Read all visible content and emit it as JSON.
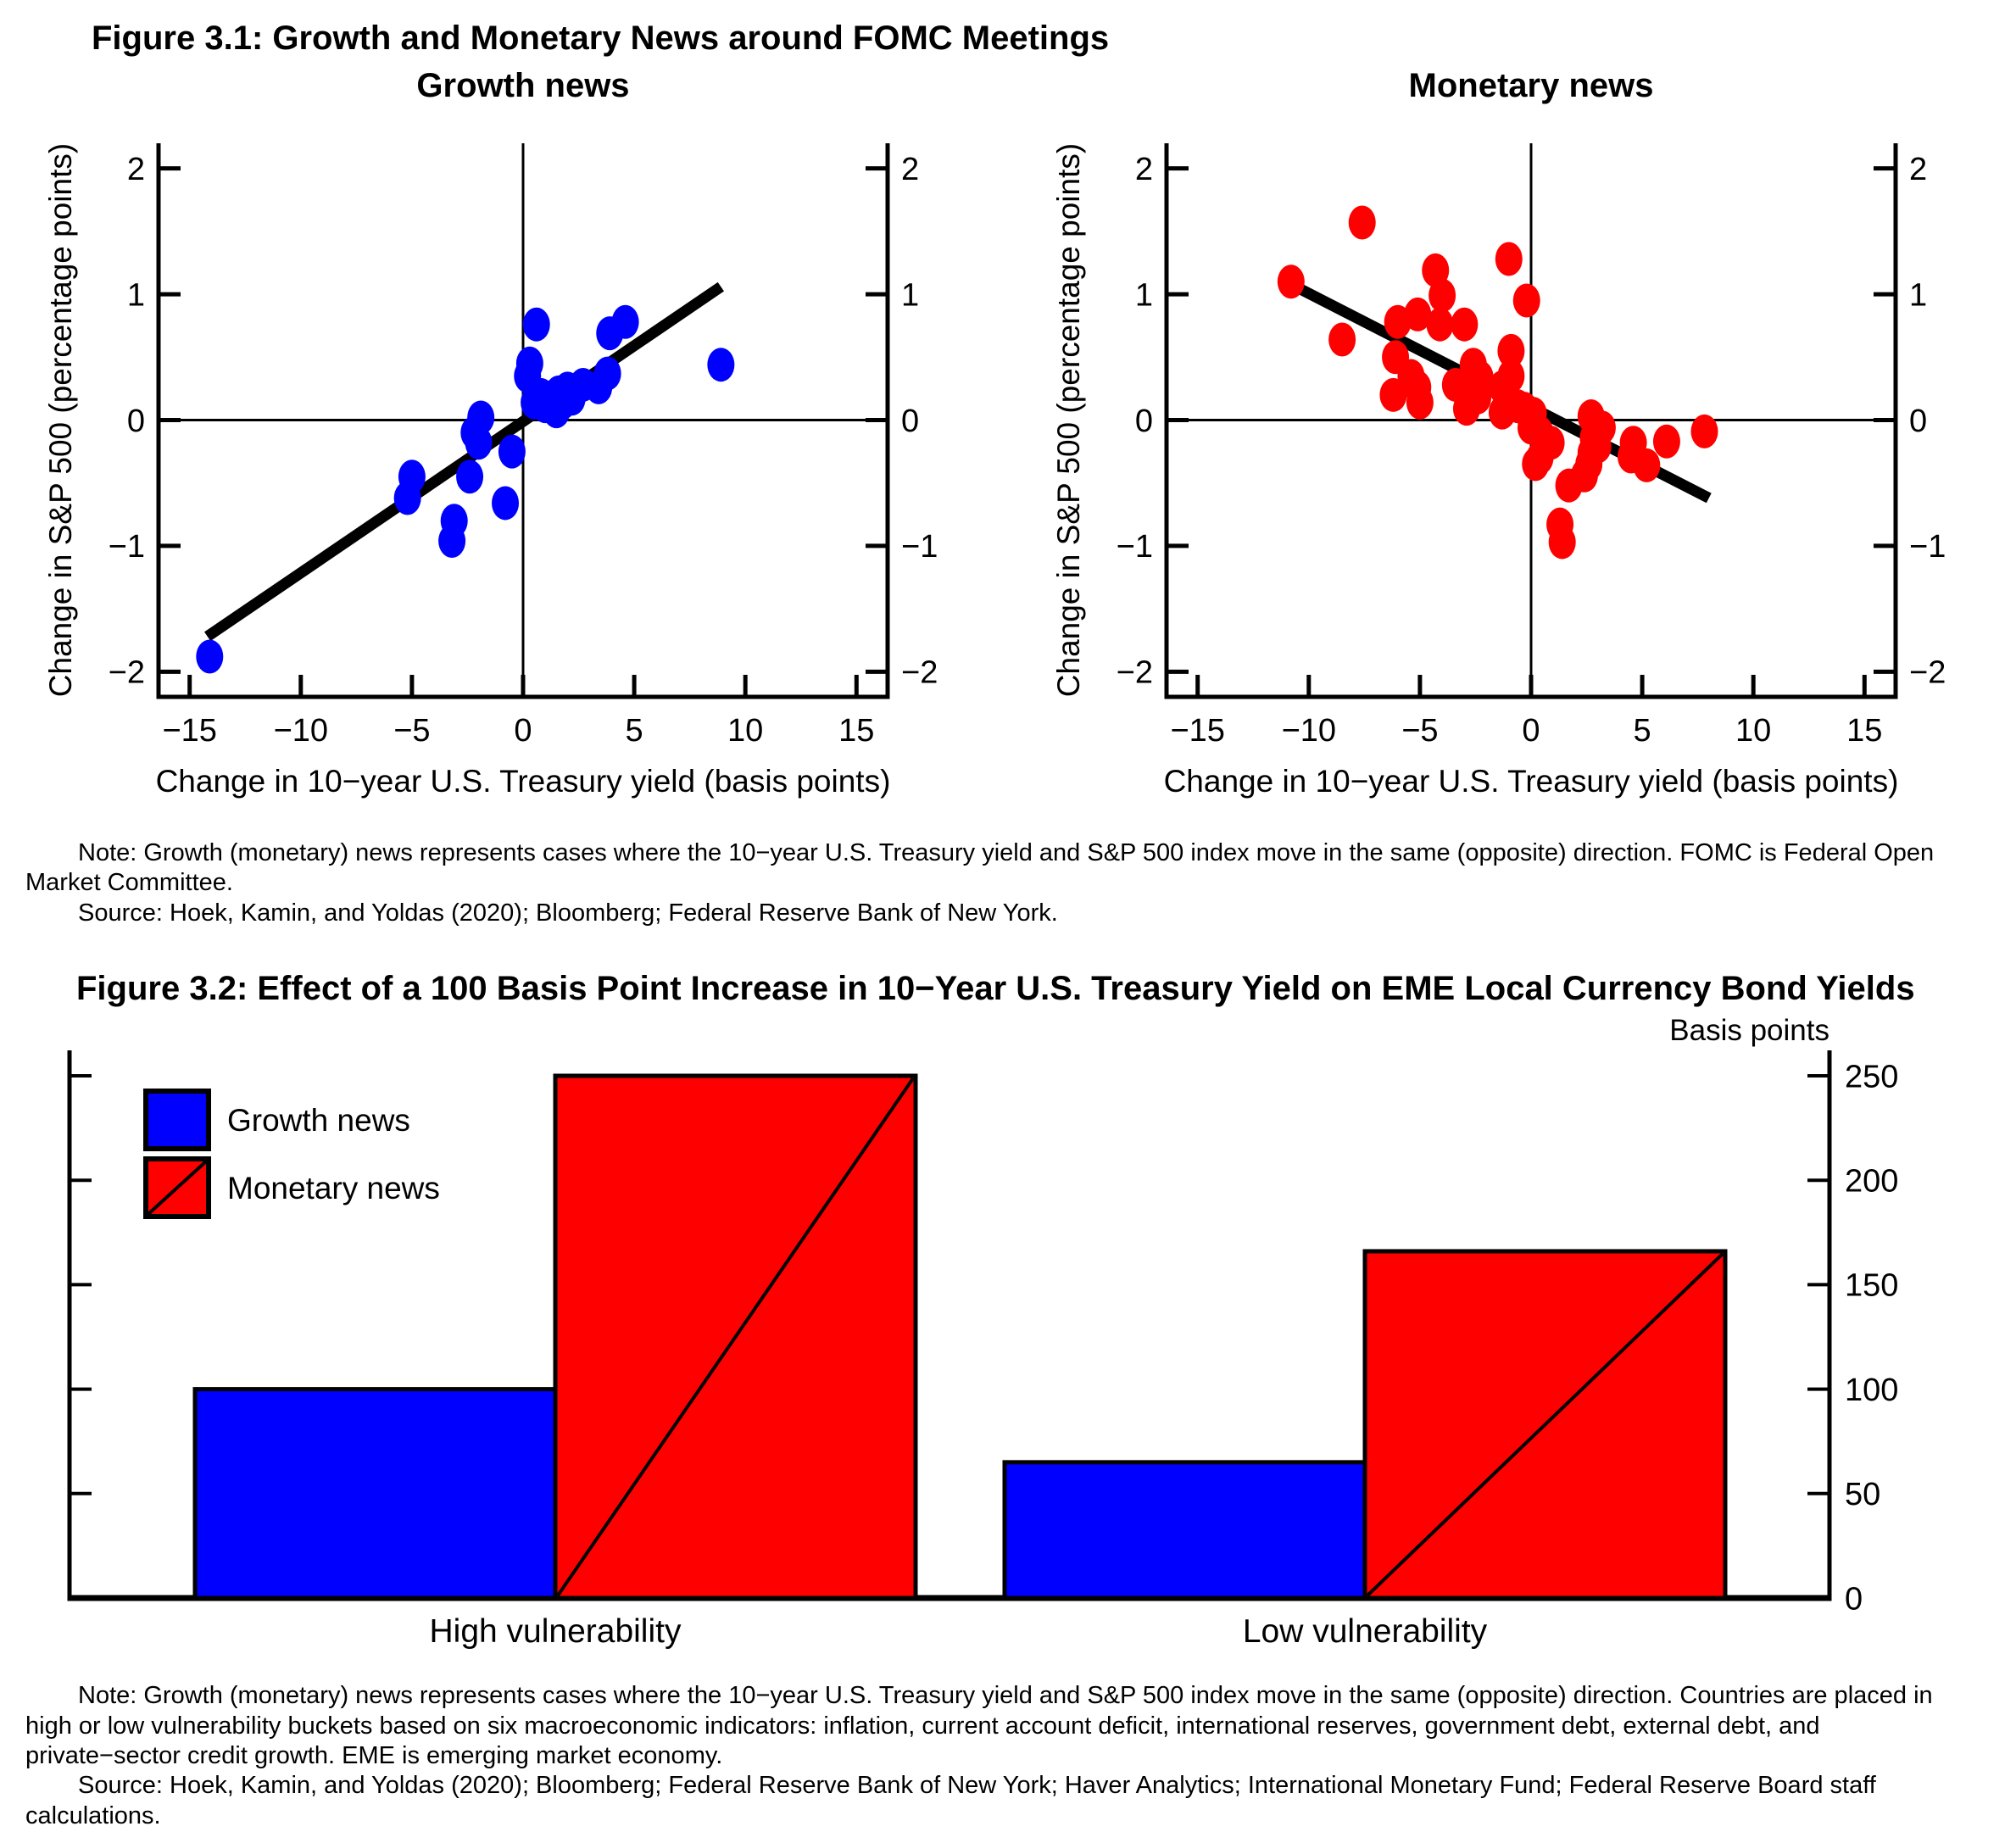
{
  "figure31": {
    "title": "Figure 3.1: Growth and Monetary News around FOMC Meetings",
    "note": "Note: Growth (monetary) news represents cases where the 10−year U.S. Treasury yield and S&P 500 index move in the same (opposite) direction. FOMC is Federal Open Market Committee.",
    "source": "Source: Hoek, Kamin, and Yoldas (2020); Bloomberg; Federal Reserve Bank of New York."
  },
  "figure32": {
    "title": "Figure 3.2: Effect of a 100 Basis Point Increase in 10−Year U.S. Treasury Yield on EME Local Currency Bond Yields",
    "note": "Note: Growth (monetary) news represents cases where the 10−year U.S. Treasury yield and S&P 500 index move in the same (opposite) direction. Countries are placed in high or low vulnerability buckets based on six macroeconomic indicators: inflation, current account deficit, international reserves, government debt, external debt, and private−sector credit growth. EME is emerging market economy.",
    "source": "Source: Hoek, Kamin, and Yoldas (2020); Bloomberg; Federal Reserve Bank of New York; Haver Analytics; International Monetary Fund; Federal Reserve Board staff calculations."
  },
  "colors": {
    "growth": "#0000ff",
    "monetary": "#ff0000",
    "line": "#000000"
  },
  "chart_data": [
    {
      "type": "scatter",
      "title": "Growth news",
      "xlabel": "Change in 10−year U.S. Treasury yield (basis points)",
      "ylabel": "Change in S&P 500 (percentage points)",
      "xlim": [
        -16.4,
        16.4
      ],
      "ylim": [
        -2.2,
        2.2
      ],
      "xticks": [
        -15,
        -10,
        -5,
        0,
        5,
        10,
        15
      ],
      "yticks": [
        -2,
        -1,
        0,
        1,
        2
      ],
      "point_color": "#0000ff",
      "points": [
        [
          -14.1,
          -1.88
        ],
        [
          -5.2,
          -0.62
        ],
        [
          -5.0,
          -0.45
        ],
        [
          -3.1,
          -0.8
        ],
        [
          -3.2,
          -0.96
        ],
        [
          -2.4,
          -0.45
        ],
        [
          -2.2,
          -0.1
        ],
        [
          -2.0,
          -0.18
        ],
        [
          -1.9,
          0.02
        ],
        [
          -0.5,
          -0.25
        ],
        [
          -0.8,
          -0.66
        ],
        [
          0.2,
          0.35
        ],
        [
          0.3,
          0.45
        ],
        [
          0.6,
          0.76
        ],
        [
          0.5,
          0.14
        ],
        [
          0.8,
          0.2
        ],
        [
          1.0,
          0.11
        ],
        [
          1.2,
          0.18
        ],
        [
          1.4,
          0.1
        ],
        [
          1.6,
          0.22
        ],
        [
          1.8,
          0.14
        ],
        [
          2.0,
          0.25
        ],
        [
          2.2,
          0.17
        ],
        [
          1.5,
          0.07
        ],
        [
          2.7,
          0.28
        ],
        [
          3.4,
          0.26
        ],
        [
          3.8,
          0.37
        ],
        [
          3.9,
          0.69
        ],
        [
          4.6,
          0.78
        ],
        [
          8.9,
          0.44
        ]
      ],
      "trend_line": {
        "x1": -14.2,
        "y1": -1.72,
        "x2": 8.9,
        "y2": 1.06
      }
    },
    {
      "type": "scatter",
      "title": "Monetary news",
      "xlabel": "Change in 10−year U.S. Treasury yield (basis points)",
      "ylabel": "Change in S&P 500 (percentage points)",
      "xlim": [
        -16.4,
        16.4
      ],
      "ylim": [
        -2.2,
        2.2
      ],
      "xticks": [
        -15,
        -10,
        -5,
        0,
        5,
        10,
        15
      ],
      "yticks": [
        -2,
        -1,
        0,
        1,
        2
      ],
      "point_color": "#ff0000",
      "points": [
        [
          -10.8,
          1.1
        ],
        [
          -7.6,
          1.57
        ],
        [
          -4.3,
          1.19
        ],
        [
          -1.0,
          1.28
        ],
        [
          -4.0,
          0.99
        ],
        [
          -0.2,
          0.95
        ],
        [
          -8.5,
          0.64
        ],
        [
          -6.0,
          0.78
        ],
        [
          -5.1,
          0.84
        ],
        [
          -4.1,
          0.76
        ],
        [
          -3.0,
          0.76
        ],
        [
          -6.1,
          0.5
        ],
        [
          -0.9,
          0.55
        ],
        [
          -5.4,
          0.35
        ],
        [
          -6.2,
          0.2
        ],
        [
          -5.1,
          0.26
        ],
        [
          -5.0,
          0.14
        ],
        [
          -3.4,
          0.28
        ],
        [
          -2.6,
          0.44
        ],
        [
          -2.3,
          0.34
        ],
        [
          -2.9,
          0.09
        ],
        [
          -2.4,
          0.18
        ],
        [
          -1.3,
          0.26
        ],
        [
          -0.9,
          0.35
        ],
        [
          -1.0,
          0.14
        ],
        [
          -1.3,
          0.06
        ],
        [
          -0.6,
          0.11
        ],
        [
          -0.3,
          0.09
        ],
        [
          0.1,
          0.05
        ],
        [
          0.0,
          -0.06
        ],
        [
          0.4,
          -0.1
        ],
        [
          0.9,
          -0.18
        ],
        [
          2.7,
          0.03
        ],
        [
          3.2,
          -0.06
        ],
        [
          2.8,
          -0.14
        ],
        [
          3.0,
          -0.21
        ],
        [
          2.7,
          -0.26
        ],
        [
          4.6,
          -0.18
        ],
        [
          6.1,
          -0.17
        ],
        [
          7.8,
          -0.09
        ],
        [
          4.5,
          -0.29
        ],
        [
          5.2,
          -0.36
        ],
        [
          2.6,
          -0.35
        ],
        [
          0.4,
          -0.3
        ],
        [
          0.2,
          -0.35
        ],
        [
          1.7,
          -0.52
        ],
        [
          2.4,
          -0.44
        ],
        [
          1.3,
          -0.83
        ],
        [
          1.4,
          -0.97
        ]
      ],
      "trend_line": {
        "x1": -10.7,
        "y1": 1.07,
        "x2": 8.0,
        "y2": -0.62
      }
    },
    {
      "type": "bar",
      "categories": [
        "High vulnerability",
        "Low vulnerability"
      ],
      "series": [
        {
          "name": "Growth news",
          "values": [
            100,
            65
          ],
          "color": "#0000ff",
          "hatch": false
        },
        {
          "name": "Monetary news",
          "values": [
            250,
            166
          ],
          "color": "#ff0000",
          "hatch": true
        }
      ],
      "ylabel": "Basis points",
      "ylim": [
        0,
        250
      ],
      "yticks": [
        0,
        50,
        100,
        150,
        200,
        250
      ],
      "legend_position": "top-left",
      "grid": false
    }
  ]
}
